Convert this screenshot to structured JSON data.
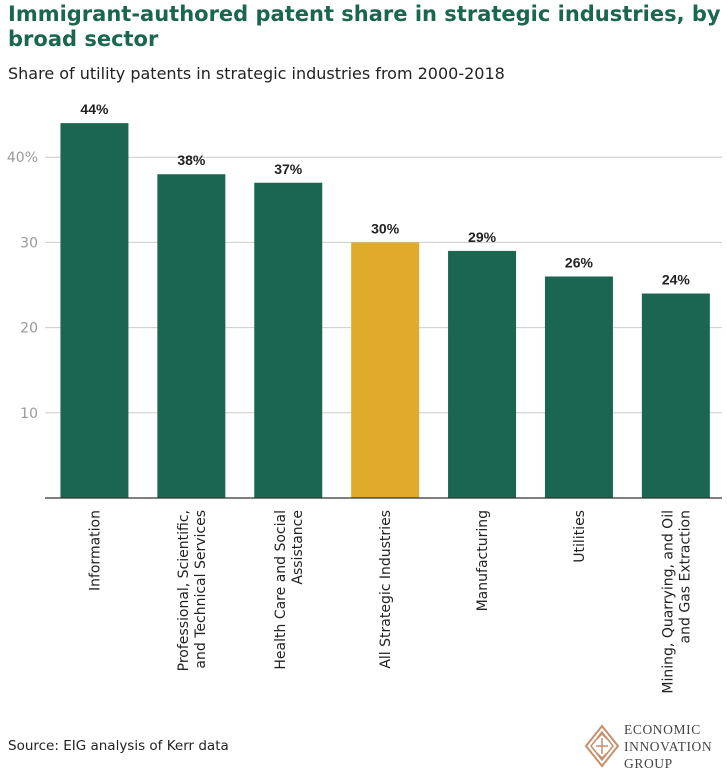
{
  "title": "Immigrant-authored patent share in strategic industries, by broad sector",
  "subtitle": "Share of utility patents in strategic industries from 2000-2018",
  "source": "Source: EIG analysis of Kerr data",
  "logo": {
    "line1": "ECONOMIC",
    "line2": "INNOVATION",
    "line3": "GROUP",
    "accent_color": "#c58f6a"
  },
  "colors": {
    "bar": "#1a6650",
    "highlight": "#e0ab2a",
    "grid": "#cccccc",
    "axis": "#333333",
    "title": "#1a6650"
  },
  "chart_data": {
    "type": "bar",
    "categories": [
      [
        "Information"
      ],
      [
        "Professional, Scientific,",
        "and Technical Services"
      ],
      [
        "Health Care and Social",
        "Assistance"
      ],
      [
        "All Strategic Industries"
      ],
      [
        "Manufacturing"
      ],
      [
        "Utilities"
      ],
      [
        "Mining, Quarrying, and Oil",
        "and Gas Extraction"
      ]
    ],
    "values": [
      44,
      38,
      37,
      30,
      29,
      26,
      24
    ],
    "data_labels": [
      "44%",
      "38%",
      "37%",
      "30%",
      "29%",
      "26%",
      "24%"
    ],
    "highlight_index": 3,
    "ylim": [
      0,
      40
    ],
    "yticks": [
      10,
      20,
      30,
      40
    ],
    "ytick_labels": [
      "10",
      "20",
      "30",
      "40%"
    ],
    "grid": true,
    "xlabel": "",
    "ylabel": ""
  }
}
